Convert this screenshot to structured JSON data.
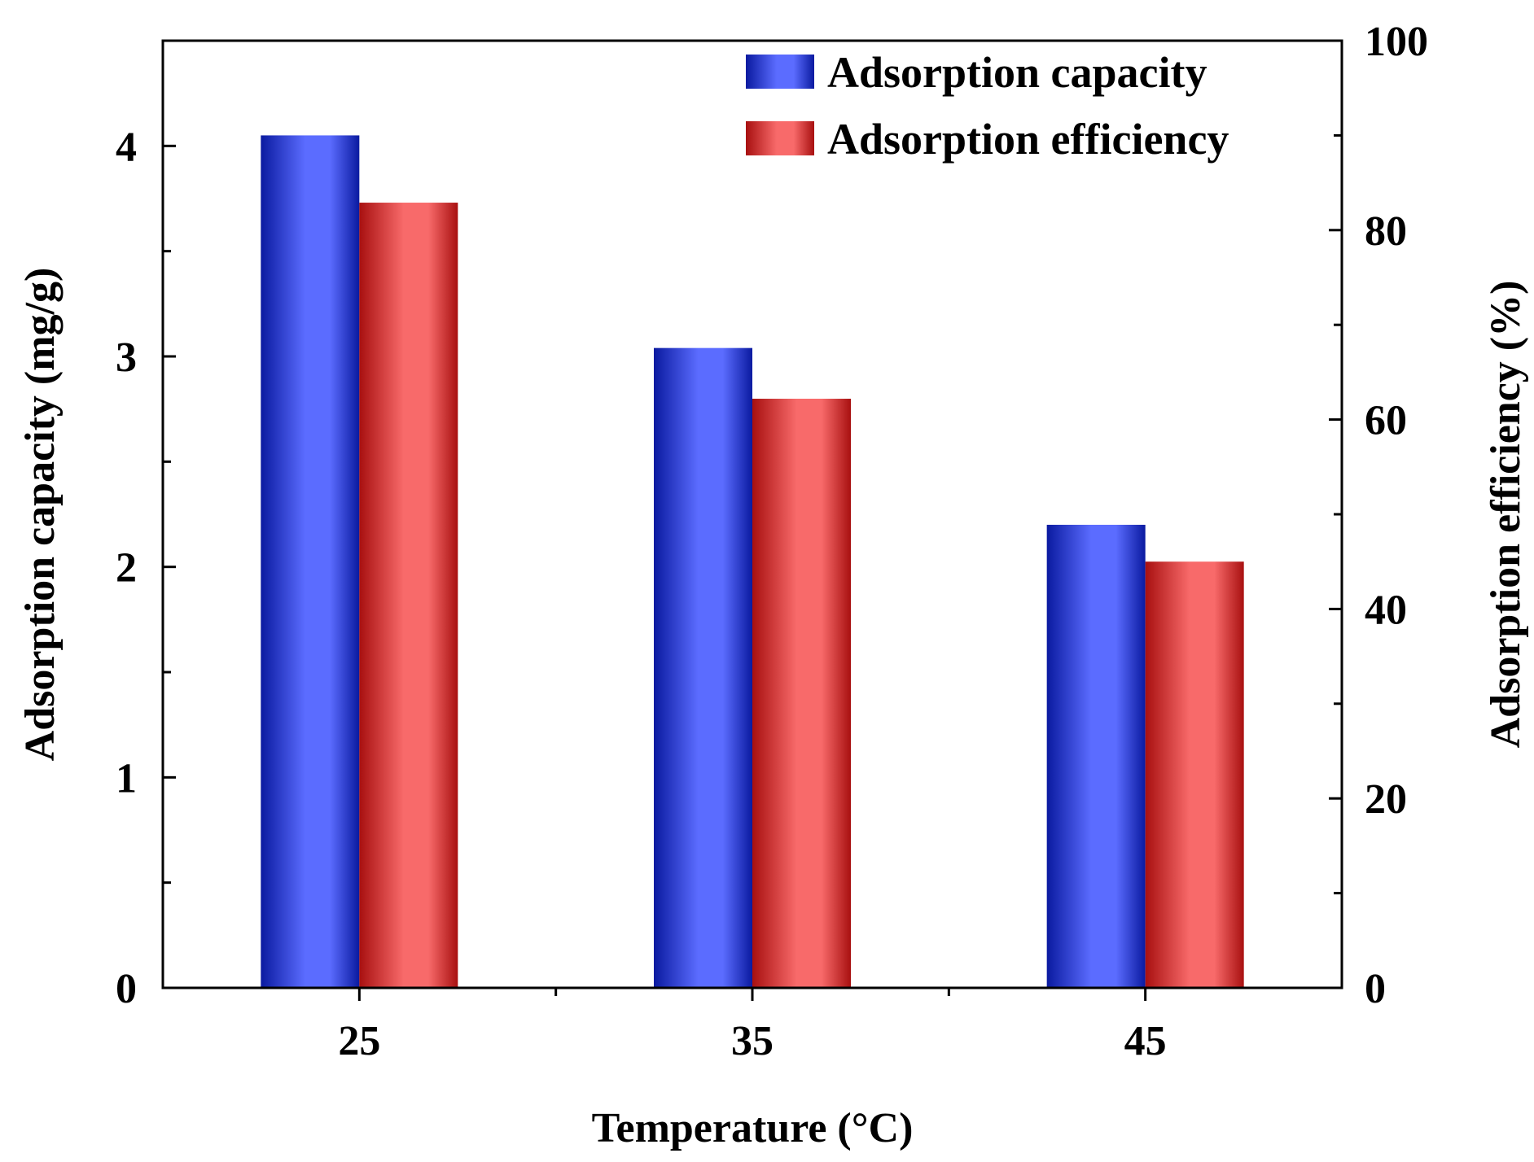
{
  "chart_data": {
    "type": "bar",
    "categories": [
      "25",
      "35",
      "45"
    ],
    "xlabel": "Temperature (°C)",
    "ylabel": "Adsorption capacity (mg/g)",
    "y2label": "Adsorption efficiency (%)",
    "ylim": [
      0,
      4.5
    ],
    "y2lim": [
      0,
      100
    ],
    "yticks": [
      "0",
      "1",
      "2",
      "3",
      "4"
    ],
    "y2ticks": [
      "0",
      "20",
      "40",
      "60",
      "80",
      "100"
    ],
    "legend_position": "top-right",
    "series": [
      {
        "name": "Adsorption capacity",
        "axis": "left",
        "values": [
          4.05,
          3.04,
          2.2
        ],
        "color": "#5b6cff",
        "edge_color": "#0a1aa0"
      },
      {
        "name": "Adsorption efficiency",
        "axis": "right",
        "values": [
          82.9,
          62.2,
          45.0
        ],
        "color": "#f86a6a",
        "edge_color": "#a81010"
      }
    ]
  }
}
